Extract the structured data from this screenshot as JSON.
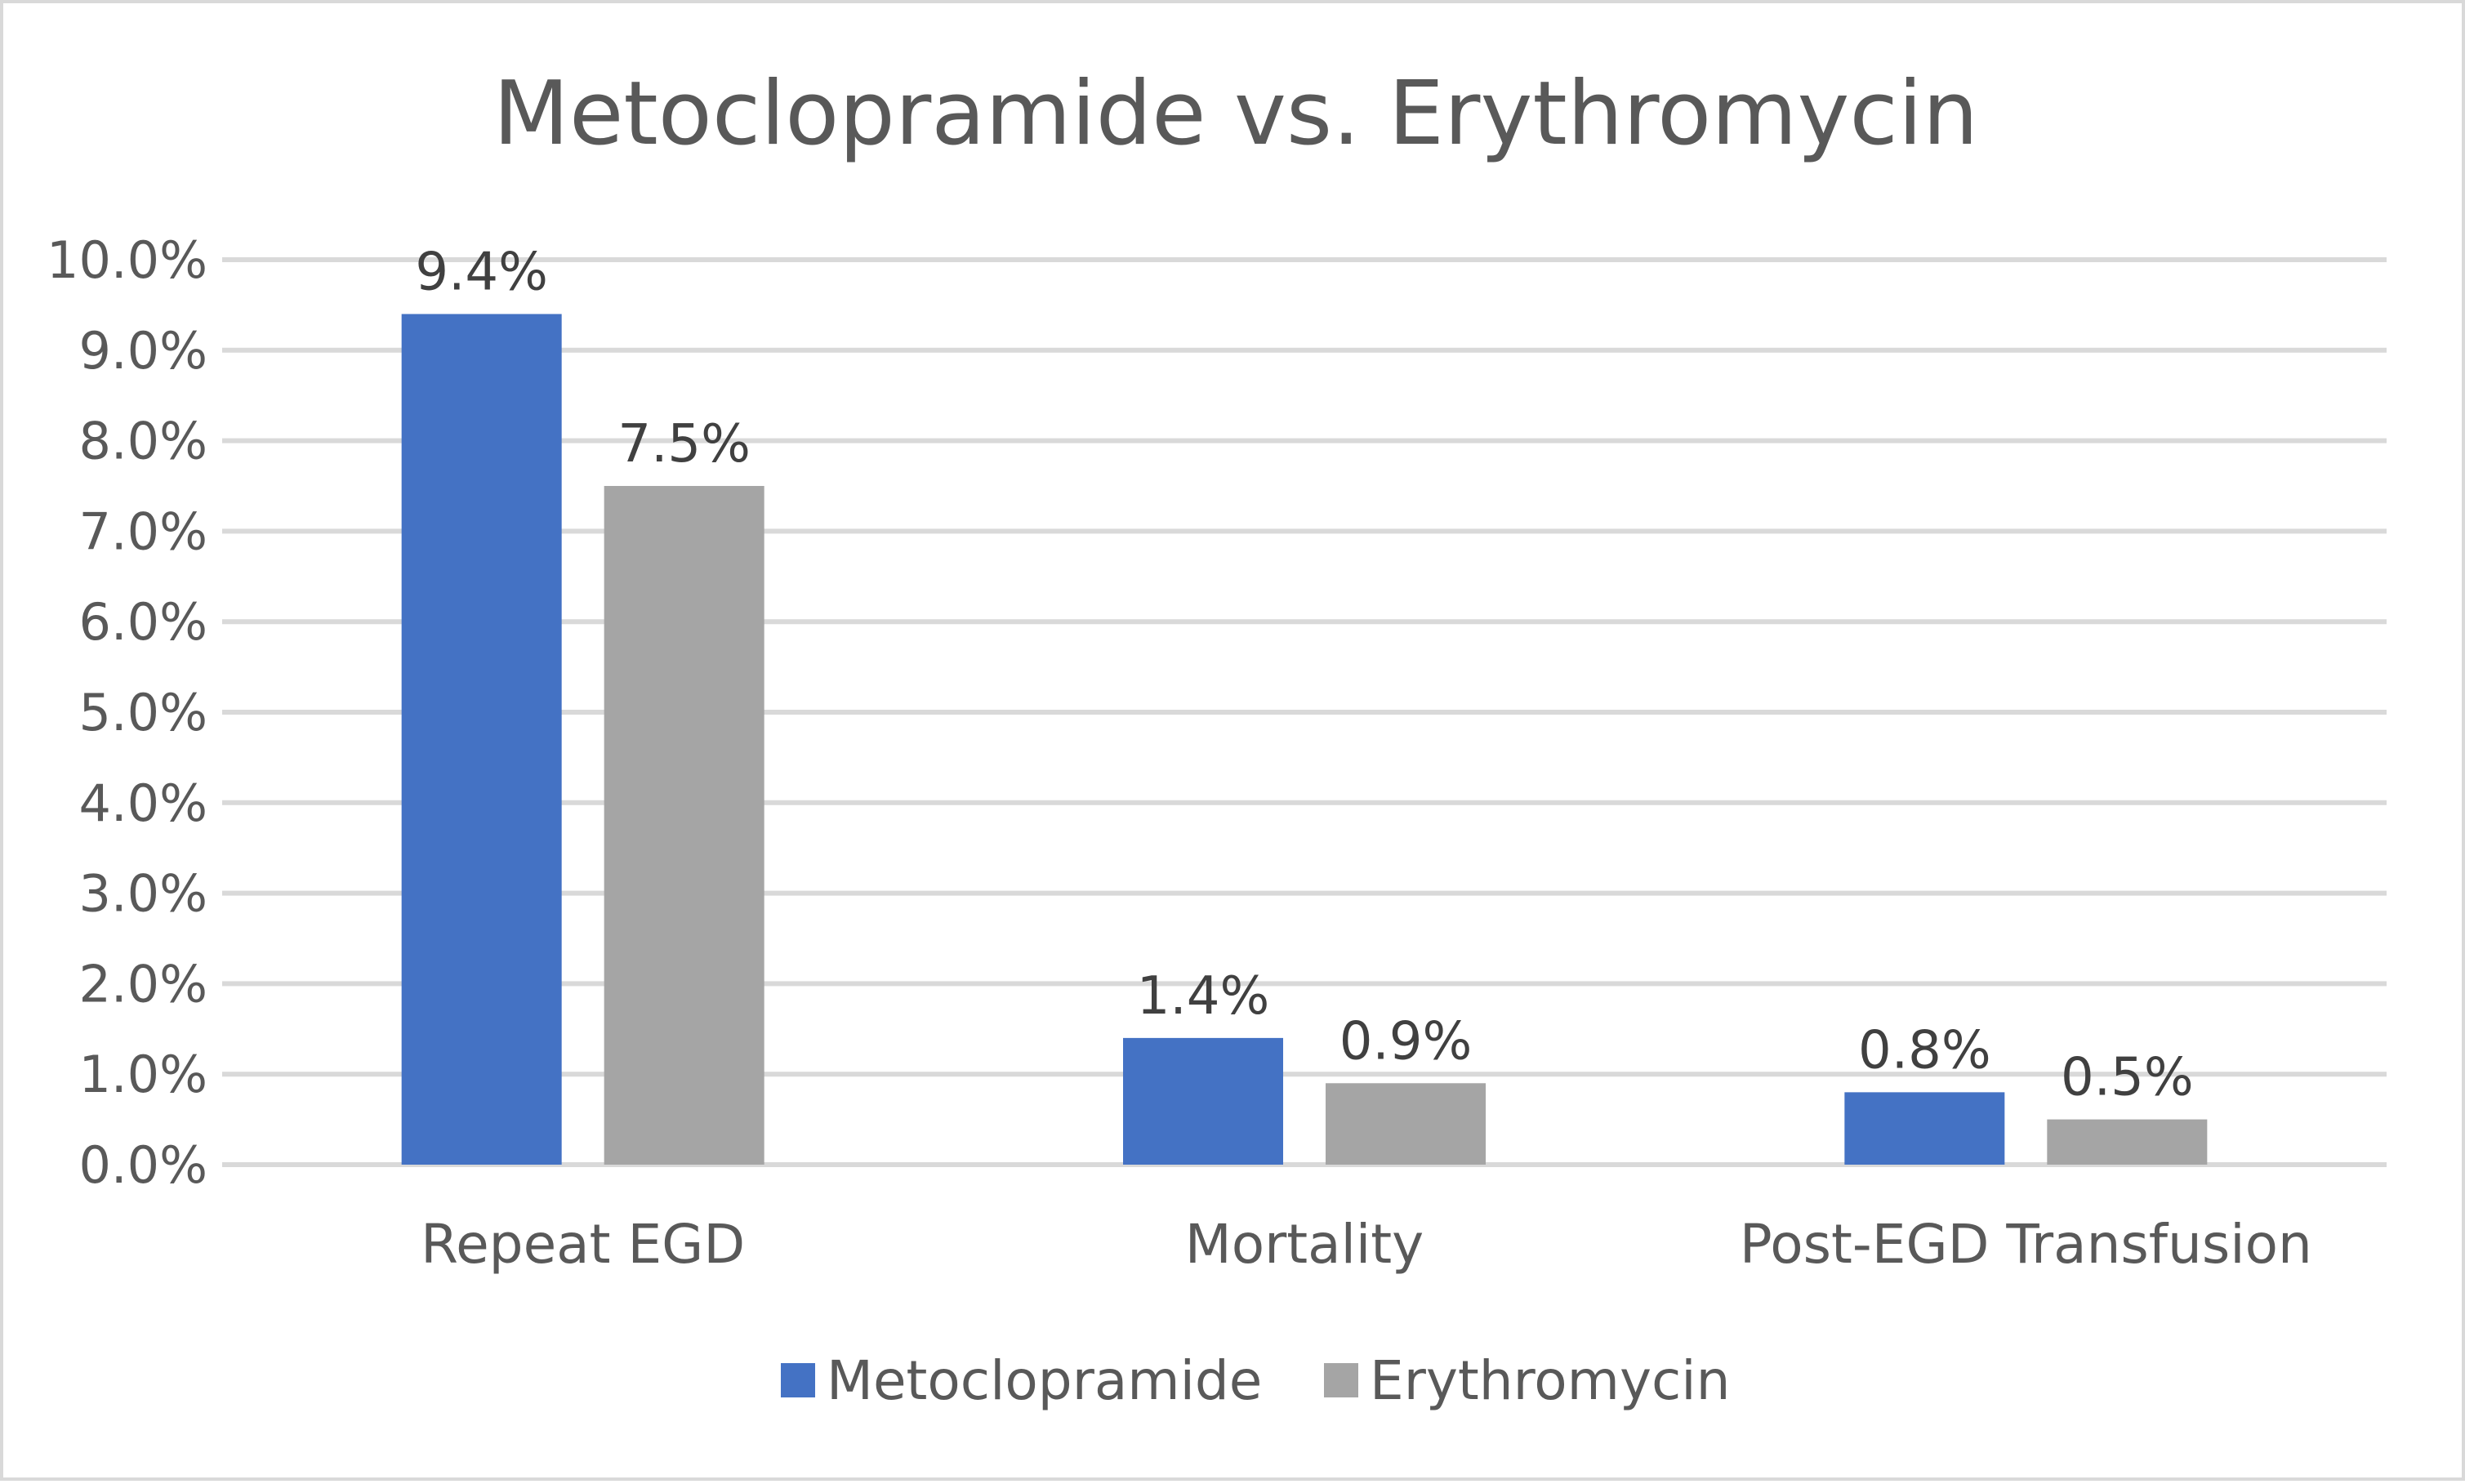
{
  "chart_data": {
    "type": "bar",
    "title": "Metoclopramide vs. Erythromycin",
    "xlabel": "",
    "ylabel": "",
    "categories": [
      "Repeat EGD",
      "Mortality",
      "Post-EGD Transfusion"
    ],
    "series": [
      {
        "name": "Metoclopramide",
        "color": "#4472c4",
        "values": [
          9.4,
          1.4,
          0.8
        ],
        "labels": [
          "9.4%",
          "1.4%",
          "0.8%"
        ]
      },
      {
        "name": "Erythromycin",
        "color": "#a5a5a5",
        "values": [
          7.5,
          0.9,
          0.5
        ],
        "labels": [
          "7.5%",
          "0.9%",
          "0.5%"
        ]
      }
    ],
    "ylim": [
      0,
      10
    ],
    "yticks": [
      0,
      1,
      2,
      3,
      4,
      5,
      6,
      7,
      8,
      9,
      10
    ],
    "ytick_labels": [
      "0.0%",
      "1.0%",
      "2.0%",
      "3.0%",
      "4.0%",
      "5.0%",
      "6.0%",
      "7.0%",
      "8.0%",
      "9.0%",
      "10.0%"
    ],
    "grid": true,
    "legend_position": "bottom"
  }
}
